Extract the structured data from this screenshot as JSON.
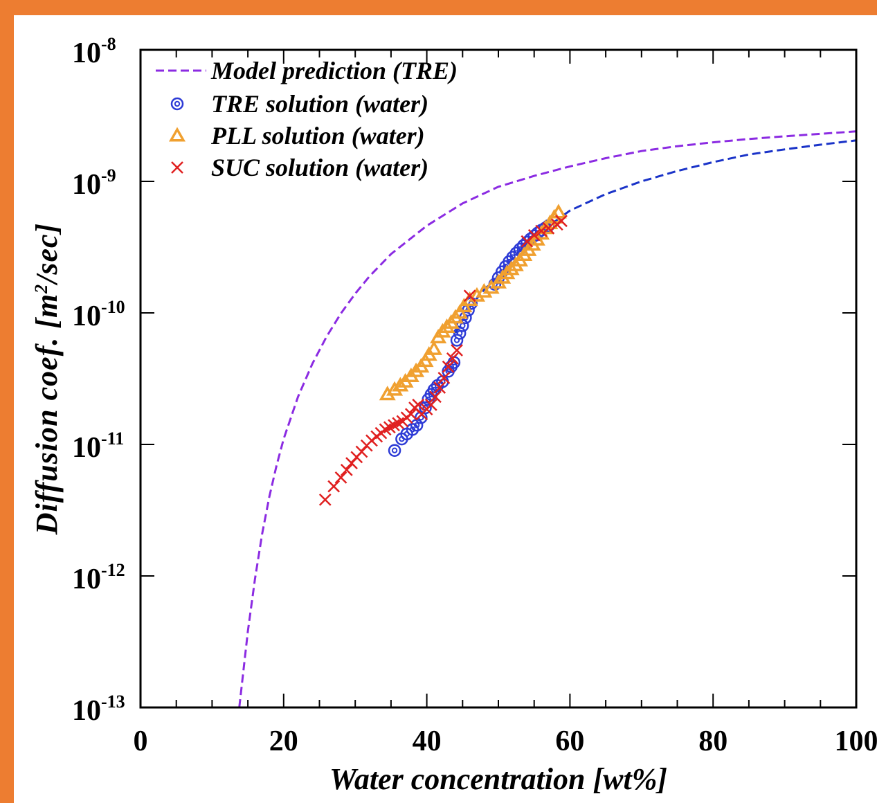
{
  "chart_data": {
    "type": "scatter",
    "xlabel": "Water concentration [wt%]",
    "ylabel": "Diffusion coef. [m²/sec]",
    "xlim": [
      0,
      100
    ],
    "ylim": [
      1e-13,
      1e-08
    ],
    "y_scale": "log",
    "grid": false,
    "legend_position": "top-left",
    "x_ticks": [
      "0",
      "20",
      "40",
      "60",
      "80",
      "100"
    ],
    "y_ticks": [
      {
        "base": "10",
        "exp": "-13",
        "value": 1e-13
      },
      {
        "base": "10",
        "exp": "-12",
        "value": 1e-12
      },
      {
        "base": "10",
        "exp": "-11",
        "value": 1e-11
      },
      {
        "base": "10",
        "exp": "-10",
        "value": 1e-10
      },
      {
        "base": "10",
        "exp": "-9",
        "value": 1e-09
      },
      {
        "base": "10",
        "exp": "-8",
        "value": 1e-08
      }
    ],
    "series": [
      {
        "name": "Model prediction (TRE)",
        "kind": "line",
        "style": "dashed",
        "color": "#8B2BE2",
        "x": [
          13.8,
          15,
          16,
          17,
          18,
          19,
          20,
          22,
          24,
          26,
          28,
          30,
          32,
          35,
          40,
          45,
          50,
          55,
          60,
          65,
          70,
          75,
          80,
          85,
          90,
          95,
          100
        ],
        "y": [
          1e-13,
          3.8e-13,
          9.5e-13,
          2.1e-12,
          4e-12,
          6.9e-12,
          1.1e-11,
          2.3e-11,
          4.1e-11,
          6.6e-11,
          9.9e-11,
          1.4e-10,
          1.9e-10,
          2.8e-10,
          4.6e-10,
          6.8e-10,
          9.1e-10,
          1.1e-09,
          1.3e-09,
          1.5e-09,
          1.7e-09,
          1.85e-09,
          1.98e-09,
          2.1e-09,
          2.2e-09,
          2.3e-09,
          2.4e-09
        ]
      },
      {
        "name": "",
        "kind": "line",
        "style": "dashed",
        "color": "#1a33c8",
        "x": [
          44,
          46,
          48,
          50,
          52,
          55,
          58,
          60,
          65,
          70,
          75,
          80,
          85,
          90,
          95,
          100
        ],
        "y": [
          7e-11,
          1.1e-10,
          1.5e-10,
          1.9e-10,
          2.6e-10,
          3.9e-10,
          5e-10,
          6e-10,
          8e-10,
          1e-09,
          1.2e-09,
          1.4e-09,
          1.6e-09,
          1.75e-09,
          1.9e-09,
          2.05e-09
        ]
      },
      {
        "name": "TRE solution (water)",
        "kind": "scatter",
        "marker": "circle",
        "color": "#2d3bd6",
        "x": [
          35.5,
          36.5,
          37.2,
          38.0,
          38.6,
          39.2,
          39.8,
          40.2,
          40.6,
          41.0,
          41.5,
          42.2,
          43.0,
          43.4,
          43.8,
          44.2,
          44.6,
          45.0,
          45.4,
          45.8,
          46.2,
          49.5,
          50.0,
          50.5,
          51.0,
          51.5,
          52.0,
          52.5,
          53.0,
          53.5,
          54.0,
          54.5,
          55.0,
          55.5,
          56.0,
          56.5,
          57.0
        ],
        "y": [
          9e-12,
          1.1e-11,
          1.2e-11,
          1.3e-11,
          1.4e-11,
          1.6e-11,
          1.9e-11,
          2.2e-11,
          2.4e-11,
          2.6e-11,
          2.8e-11,
          3e-11,
          3.6e-11,
          3.9e-11,
          4.2e-11,
          6.2e-11,
          7e-11,
          8e-11,
          9.2e-11,
          1.05e-10,
          1.18e-10,
          1.65e-10,
          1.85e-10,
          2.05e-10,
          2.25e-10,
          2.45e-10,
          2.65e-10,
          2.85e-10,
          3.05e-10,
          3.25e-10,
          3.45e-10,
          3.65e-10,
          3.85e-10,
          4.05e-10,
          4.25e-10,
          4.4e-10,
          4.6e-10
        ]
      },
      {
        "name": "PLL solution (water)",
        "kind": "scatter",
        "marker": "triangle",
        "color": "#F0A030",
        "x": [
          34.5,
          35.5,
          36.3,
          37.0,
          37.8,
          38.5,
          39.2,
          39.8,
          40.3,
          41.0,
          41.6,
          42.2,
          42.8,
          43.4,
          44.0,
          44.6,
          45.2,
          46.0,
          47.0,
          48.0,
          49.0,
          50.0,
          50.6,
          51.2,
          51.8,
          52.4,
          53.0,
          53.6,
          54.2,
          54.8,
          55.4,
          56.0,
          56.6,
          57.2,
          57.8,
          58.4
        ],
        "y": [
          2.4e-11,
          2.6e-11,
          2.8e-11,
          3e-11,
          3.3e-11,
          3.6e-11,
          3.9e-11,
          4.3e-11,
          4.8e-11,
          5.3e-11,
          6.5e-11,
          7.2e-11,
          7.8e-11,
          8.4e-11,
          9.2e-11,
          1e-10,
          1.12e-10,
          1.25e-10,
          1.35e-10,
          1.45e-10,
          1.55e-10,
          1.7e-10,
          1.85e-10,
          2e-10,
          2.15e-10,
          2.3e-10,
          2.5e-10,
          2.75e-10,
          3e-10,
          3.3e-10,
          3.6e-10,
          4e-10,
          4.4e-10,
          4.8e-10,
          5.3e-10,
          5.8e-10
        ]
      },
      {
        "name": "SUC solution (water)",
        "kind": "scatter",
        "marker": "x",
        "color": "#E02020",
        "x": [
          25.8,
          27.0,
          28.0,
          28.8,
          29.5,
          30.2,
          30.9,
          31.6,
          32.3,
          33.0,
          33.6,
          34.2,
          34.8,
          35.4,
          36.0,
          36.6,
          37.2,
          37.8,
          38.3,
          38.8,
          39.3,
          40.0,
          40.6,
          41.2,
          41.8,
          42.4,
          43.0,
          43.6,
          44.2,
          46.0,
          54.0,
          55.0,
          56.0,
          57.0,
          58.2,
          58.8
        ],
        "y": [
          3.8e-12,
          4.8e-12,
          5.6e-12,
          6.4e-12,
          7.2e-12,
          8e-12,
          8.8e-12,
          9.8e-12,
          1.07e-11,
          1.15e-11,
          1.22e-11,
          1.3e-11,
          1.35e-11,
          1.4e-11,
          1.45e-11,
          1.5e-11,
          1.6e-11,
          1.7e-11,
          1.9e-11,
          2e-11,
          1.7e-11,
          1.85e-11,
          2e-11,
          2.3e-11,
          2.7e-11,
          3.2e-11,
          3.9e-11,
          4.5e-11,
          5.2e-11,
          1.35e-10,
          3.5e-10,
          3.9e-10,
          4.2e-10,
          4.4e-10,
          4.7e-10,
          5e-10
        ]
      }
    ]
  }
}
